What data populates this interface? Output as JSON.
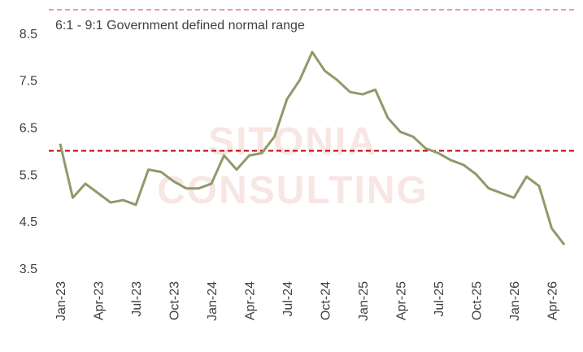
{
  "chart_data": {
    "type": "line",
    "annotation": "6:1 - 9:1 Government defined normal range",
    "watermark": [
      "SITONIA",
      "CONSULTING"
    ],
    "categories": [
      "Jan-23",
      null,
      null,
      "Apr-23",
      null,
      null,
      "Jul-23",
      null,
      null,
      "Oct-23",
      null,
      null,
      "Jan-24",
      null,
      null,
      "Apr-24",
      null,
      null,
      "Jul-24",
      null,
      null,
      "Oct-24",
      null,
      null,
      "Jan-25",
      null,
      null,
      "Apr-25",
      null,
      null,
      "Jul-25",
      null,
      null,
      "Oct-25",
      null,
      null,
      "Jan-26",
      null,
      null,
      "Apr-26",
      null
    ],
    "series": [
      {
        "color": "#8f9a6a",
        "values": [
          6.15,
          5.0,
          5.3,
          5.1,
          4.9,
          4.95,
          4.85,
          5.6,
          5.55,
          5.35,
          5.2,
          5.2,
          5.3,
          5.9,
          5.6,
          5.9,
          5.95,
          6.3,
          7.1,
          7.5,
          8.1,
          7.7,
          7.5,
          7.25,
          7.2,
          7.3,
          6.7,
          6.4,
          6.3,
          6.05,
          5.95,
          5.8,
          5.7,
          5.5,
          5.2,
          5.1,
          5.0,
          5.45,
          5.25,
          4.35,
          4.0
        ]
      }
    ],
    "reference_lines": [
      {
        "value": 6,
        "color": "#c00000"
      },
      {
        "value": 9,
        "color": "#e06060"
      }
    ],
    "ylim": [
      3.5,
      9
    ],
    "yticks": [
      3.5,
      4.5,
      5.5,
      6.5,
      7.5,
      8.5
    ],
    "grid": false
  }
}
